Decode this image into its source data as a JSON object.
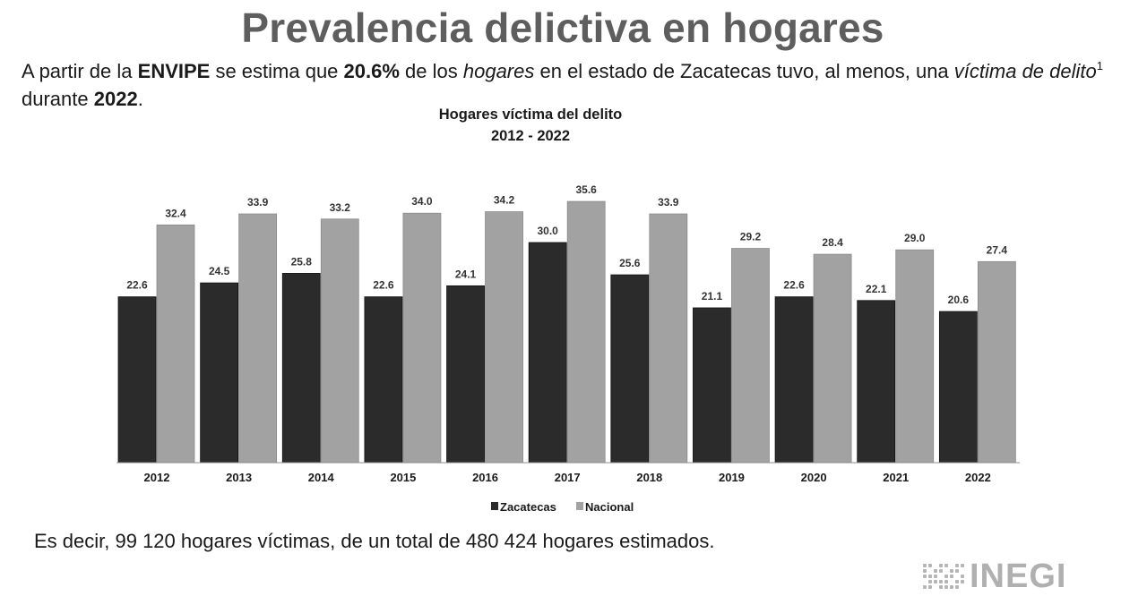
{
  "header": {
    "title": "Prevalencia delictiva en hogares"
  },
  "intro": {
    "p1": "A partir de la ",
    "b1": "ENVIPE",
    "p2": " se estima que ",
    "b2": "20.6%",
    "p3": " de los ",
    "i1": "hogares",
    "p4": " en el estado de Zacatecas tuvo, al menos, una ",
    "i2": "víctima de delito",
    "sup": "1",
    "p5": " durante ",
    "b3": "2022",
    "p6": "."
  },
  "chart_data": {
    "type": "bar",
    "title": "Hogares víctima del delito",
    "subtitle": "2012 - 2022",
    "categories": [
      "2012",
      "2013",
      "2014",
      "2015",
      "2016",
      "2017",
      "2018",
      "2019",
      "2020",
      "2021",
      "2022"
    ],
    "series": [
      {
        "name": "Zacatecas",
        "color": "#2b2b2b",
        "values": [
          22.6,
          24.5,
          25.8,
          22.6,
          24.1,
          30.0,
          25.6,
          21.1,
          22.6,
          22.1,
          20.6
        ]
      },
      {
        "name": "Nacional",
        "color": "#a2a2a2",
        "values": [
          32.4,
          33.9,
          33.2,
          34.0,
          34.2,
          35.6,
          33.9,
          29.2,
          28.4,
          29.0,
          27.4
        ]
      }
    ],
    "ylim": [
      0,
      40
    ],
    "grid": false,
    "legend": "bottom-center",
    "xlabel": "",
    "ylabel": ""
  },
  "summary": {
    "text": "Es decir, 99 120 hogares víctimas, de un total de 480 424 hogares estimados."
  },
  "logo": {
    "text": "INEGI",
    "icon": "inegi-dots-icon"
  }
}
